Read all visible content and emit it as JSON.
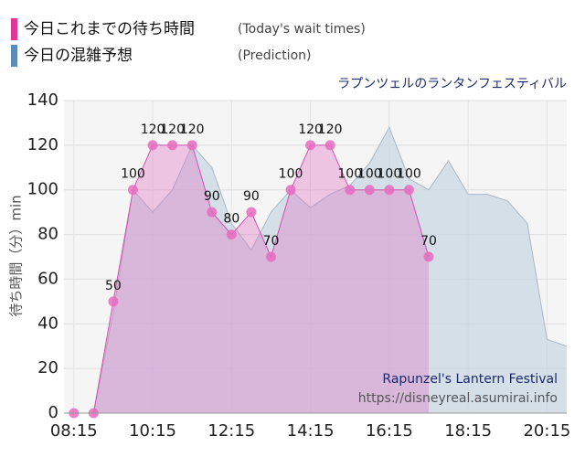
{
  "chart_data": {
    "type": "area",
    "subtitle": "ラプンツェルのランタンフェスティバル",
    "y_label": "待ち時間（分）min",
    "watermark": [
      "Rapunzel's Lantern Festival",
      "https://disneyreal.asumirai.info"
    ],
    "xlim": [
      "08:00",
      "20:45"
    ],
    "xticks": [
      "08:15",
      "10:15",
      "12:15",
      "14:15",
      "16:15",
      "18:15",
      "20:15"
    ],
    "ylim": [
      0,
      140
    ],
    "yticks": [
      0,
      20,
      40,
      60,
      80,
      100,
      120,
      140
    ],
    "grid": true,
    "series": [
      {
        "name": "今日の混雑予想",
        "name_en": "(Prediction)",
        "color": "#5b8db8",
        "x": [
          "08:15",
          "08:45",
          "09:15",
          "09:45",
          "10:15",
          "10:45",
          "11:15",
          "11:45",
          "12:15",
          "12:45",
          "13:15",
          "13:45",
          "14:15",
          "14:45",
          "15:15",
          "15:45",
          "16:15",
          "16:45",
          "17:15",
          "17:45",
          "18:15",
          "18:45",
          "19:15",
          "19:45",
          "20:15",
          "20:45"
        ],
        "values": [
          0,
          0,
          45,
          100,
          90,
          100,
          120,
          110,
          85,
          73,
          90,
          100,
          92,
          98,
          102,
          112,
          128,
          105,
          100,
          113,
          98,
          98,
          95,
          85,
          33,
          30
        ]
      },
      {
        "name": "今日これまでの待ち時間",
        "name_en": "(Today's wait times)",
        "color": "#e0389a",
        "x": [
          "08:15",
          "08:45",
          "09:15",
          "09:45",
          "10:15",
          "10:45",
          "11:15",
          "11:45",
          "12:15",
          "12:45",
          "13:15",
          "13:45",
          "14:15",
          "14:45",
          "15:15",
          "15:45",
          "16:15",
          "16:45",
          "17:15"
        ],
        "values": [
          0,
          0,
          50,
          100,
          120,
          120,
          120,
          90,
          80,
          90,
          70,
          100,
          120,
          120,
          100,
          100,
          100,
          100,
          70
        ]
      }
    ]
  }
}
